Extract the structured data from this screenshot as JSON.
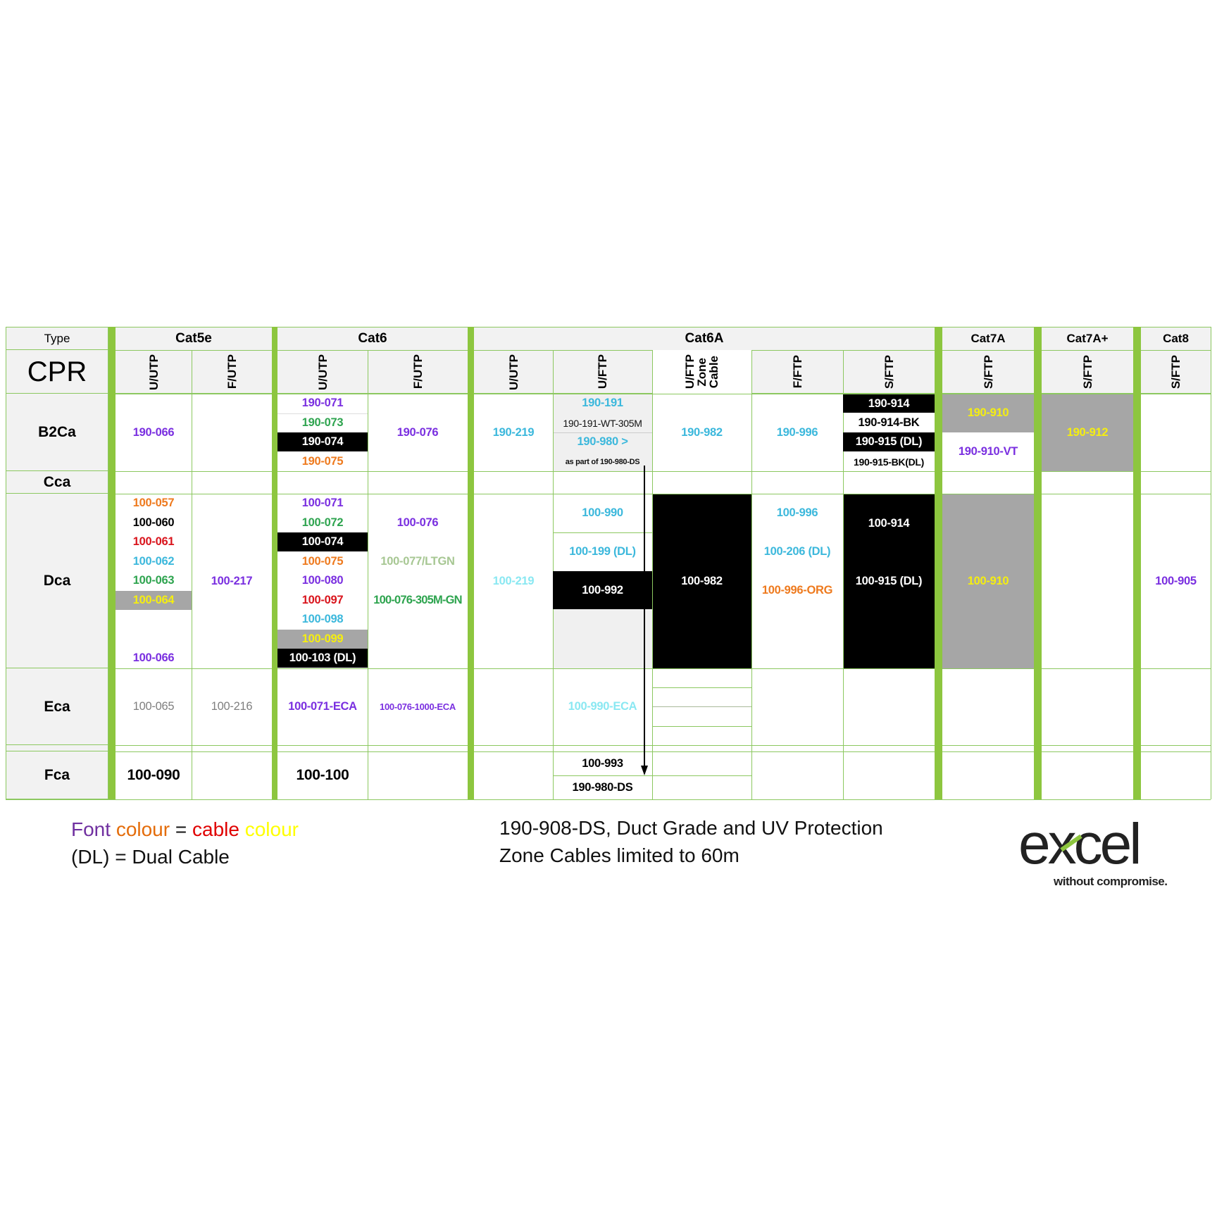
{
  "header": {
    "type_label": "Type",
    "cpr_label": "CPR",
    "categories": [
      "Cat5e",
      "Cat6",
      "Cat6A",
      "Cat7A",
      "Cat7A+",
      "Cat8"
    ],
    "subtypes": [
      "U/UTP",
      "F/UTP",
      "U/UTP",
      "F/UTP",
      "U/UTP",
      "U/FTP",
      "U/FTP",
      "F/FTP",
      "S/FTP",
      "S/FTP",
      "S/FTP",
      "S/FTP"
    ],
    "zone_lines": [
      "U/FTP",
      "Zone",
      "Cable"
    ]
  },
  "rows": [
    "B2Ca",
    "Cca",
    "Dca",
    "Eca",
    "Fca"
  ],
  "p": {
    "b2_c5u": {
      "t": "190-066",
      "c": "#7a2fe0"
    },
    "b2_c6u0": {
      "t": "190-071",
      "c": "#7a2fe0"
    },
    "b2_c6u1": {
      "t": "190-073",
      "c": "#2ea44f"
    },
    "b2_c6u2": {
      "t": "190-074",
      "c": "#ffffff"
    },
    "b2_c6u3": {
      "t": "190-075",
      "c": "#ee7a1e"
    },
    "b2_c6f": {
      "t": "190-076",
      "c": "#7a2fe0"
    },
    "b2_au": {
      "t": "190-219",
      "c": "#3cb8dc"
    },
    "b2_auf0": {
      "t": "190-191",
      "c": "#3cb8dc"
    },
    "b2_auf1": {
      "t": "190-191-WT-305M",
      "c": "#111111"
    },
    "b2_auf2": {
      "t": "190-980 >",
      "c": "#3cb8dc"
    },
    "b2_auf3": {
      "t": "as part of 190-980-DS",
      "c": "#111111"
    },
    "b2_az": {
      "t": "190-982",
      "c": "#3cb8dc"
    },
    "b2_aff": {
      "t": "190-996",
      "c": "#3cb8dc"
    },
    "b2_as0": {
      "t": "190-914",
      "c": "#ffffff"
    },
    "b2_as1": {
      "t": "190-914-BK",
      "c": "#000000"
    },
    "b2_as2": {
      "t": "190-915 (DL)",
      "c": "#ffffff"
    },
    "b2_as3": {
      "t": "190-915-BK(DL)",
      "c": "#000000"
    },
    "b2_c7a": {
      "t": "190-910",
      "c": "#f5ee10"
    },
    "b2_c7b": {
      "t": "190-910-VT",
      "c": "#7a2fe0"
    },
    "b2_c7p": {
      "t": "190-912",
      "c": "#f5ee10"
    },
    "d_c5u0": {
      "t": "100-057",
      "c": "#ee7a1e"
    },
    "d_c5u1": {
      "t": "100-060",
      "c": "#000000"
    },
    "d_c5u2": {
      "t": "100-061",
      "c": "#d9141c"
    },
    "d_c5u3": {
      "t": "100-062",
      "c": "#3cb8dc"
    },
    "d_c5u4": {
      "t": "100-063",
      "c": "#2ea44f"
    },
    "d_c5u5": {
      "t": "100-064",
      "c": "#f5ee10"
    },
    "d_c5u8": {
      "t": "100-066",
      "c": "#7a2fe0"
    },
    "d_c5f": {
      "t": "100-217",
      "c": "#7a2fe0"
    },
    "d_c6u0": {
      "t": "100-071",
      "c": "#7a2fe0"
    },
    "d_c6u1": {
      "t": "100-072",
      "c": "#2ea44f"
    },
    "d_c6u2": {
      "t": "100-074",
      "c": "#ffffff"
    },
    "d_c6u3": {
      "t": "100-075",
      "c": "#ee7a1e"
    },
    "d_c6u4": {
      "t": "100-080",
      "c": "#7a2fe0"
    },
    "d_c6u5": {
      "t": "100-097",
      "c": "#d9141c"
    },
    "d_c6u6": {
      "t": "100-098",
      "c": "#3cb8dc"
    },
    "d_c6u7": {
      "t": "100-099",
      "c": "#f5ee10"
    },
    "d_c6u8": {
      "t": "100-103 (DL)",
      "c": "#ffffff"
    },
    "d_c6f1": {
      "t": "100-076",
      "c": "#7a2fe0"
    },
    "d_c6f3": {
      "t": "100-077/LTGN",
      "c": "#a7c793"
    },
    "d_c6f5": {
      "t": "100-076-305M-GN",
      "c": "#2ea44f"
    },
    "d_au": {
      "t": "100-219",
      "c": "#8ae8f2"
    },
    "d_auf0": {
      "t": "100-990",
      "c": "#3cb8dc"
    },
    "d_auf1": {
      "t": "100-199 (DL)",
      "c": "#3cb8dc"
    },
    "d_auf2": {
      "t": "100-992",
      "c": "#ffffff"
    },
    "d_az": {
      "t": "100-982",
      "c": "#ffffff"
    },
    "d_aff0": {
      "t": "100-996",
      "c": "#3cb8dc"
    },
    "d_aff1": {
      "t": "100-206 (DL)",
      "c": "#3cb8dc"
    },
    "d_aff2": {
      "t": "100-996-ORG",
      "c": "#ee7a1e"
    },
    "d_as0": {
      "t": "100-914",
      "c": "#ffffff"
    },
    "d_as1": {
      "t": "100-915 (DL)",
      "c": "#ffffff"
    },
    "d_c7": {
      "t": "100-910",
      "c": "#f5ee10"
    },
    "d_c8": {
      "t": "100-905",
      "c": "#7a2fe0"
    },
    "e_c5u": {
      "t": "100-065",
      "c": "#7f7f7f"
    },
    "e_c5f": {
      "t": "100-216",
      "c": "#7f7f7f"
    },
    "e_c6u": {
      "t": "100-071-ECA",
      "c": "#7a2fe0"
    },
    "e_c6f": {
      "t": "100-076-1000-ECA",
      "c": "#7a2fe0"
    },
    "e_auf": {
      "t": "100-990-ECA",
      "c": "#8ae8f2"
    },
    "f_c5u": {
      "t": "100-090",
      "c": "#000000"
    },
    "f_c6u": {
      "t": "100-100",
      "c": "#000000"
    },
    "f_auf0": {
      "t": "100-993",
      "c": "#000000"
    },
    "f_auf1": {
      "t": "190-980-DS",
      "c": "#000000"
    }
  },
  "legend": {
    "font": "Font",
    "colour1": "colour",
    "eq": "=",
    "cable": "cable",
    "colour2": "colour",
    "dl": "(DL) = Dual Cable",
    "colors": {
      "font": "#7030a0",
      "colour1": "#e46c0a",
      "cable": "#e00000",
      "colour2": "#ffff00"
    }
  },
  "notes": [
    "190-908-DS, Duct Grade and UV Protection",
    "Zone Cables limited to 60m"
  ],
  "logo": {
    "name": "excel",
    "tagline": "without compromise."
  }
}
